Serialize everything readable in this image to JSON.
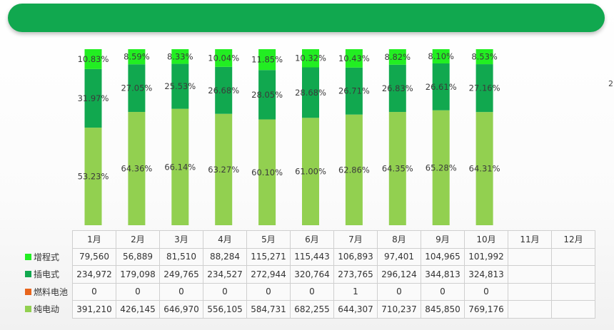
{
  "title": "",
  "edge_note": "2",
  "colors": {
    "range_extender": "#22ee22",
    "phev": "#11a84f",
    "fuel_cell": "#e8651c",
    "bev": "#92d050"
  },
  "chart_data": {
    "type": "bar",
    "stacked": true,
    "percent_stacked": true,
    "categories": [
      "1月",
      "2月",
      "3月",
      "4月",
      "5月",
      "6月",
      "7月",
      "8月",
      "9月",
      "10月",
      "11月",
      "12月"
    ],
    "series": [
      {
        "name": "纯电动",
        "color": "#92d050",
        "values": [
          53.23,
          64.36,
          66.14,
          63.27,
          60.1,
          61.0,
          62.86,
          64.35,
          65.28,
          64.31,
          null,
          null
        ],
        "labels": [
          "53.23%",
          "64.36%",
          "66.14%",
          "63.27%",
          "60.10%",
          "61.00%",
          "62.86%",
          "64.35%",
          "65.28%",
          "64.31%",
          "",
          ""
        ]
      },
      {
        "name": "插电式",
        "color": "#11a84f",
        "values": [
          31.97,
          27.05,
          25.53,
          26.68,
          28.05,
          28.68,
          26.71,
          26.83,
          26.61,
          27.16,
          null,
          null
        ],
        "labels": [
          "31.97%",
          "27.05%",
          "25.53%",
          "26.68%",
          "28.05%",
          "28.68%",
          "26.71%",
          "26.83%",
          "26.61%",
          "27.16%",
          "",
          ""
        ]
      },
      {
        "name": "增程式",
        "color": "#22ee22",
        "values": [
          10.83,
          8.59,
          8.33,
          10.04,
          11.85,
          10.32,
          10.43,
          8.82,
          8.1,
          8.53,
          null,
          null
        ],
        "labels": [
          "10.83%",
          "8.59%",
          "8.33%",
          "10.04%",
          "11.85%",
          "10.32%",
          "10.43%",
          "8.82%",
          "8.10%",
          "8.53%",
          "",
          ""
        ]
      }
    ],
    "table": {
      "headers": [
        "1月",
        "2月",
        "3月",
        "4月",
        "5月",
        "6月",
        "7月",
        "8月",
        "9月",
        "10月",
        "11月",
        "12月"
      ],
      "rows": [
        {
          "name": "增程式",
          "color": "#22ee22",
          "values": [
            "79,560",
            "56,889",
            "81,510",
            "88,284",
            "115,271",
            "115,443",
            "106,893",
            "97,401",
            "104,965",
            "101,992",
            "",
            ""
          ]
        },
        {
          "name": "插电式",
          "color": "#11a84f",
          "values": [
            "234,972",
            "179,098",
            "249,765",
            "234,527",
            "272,944",
            "320,764",
            "273,765",
            "296,124",
            "344,813",
            "324,813",
            "",
            ""
          ]
        },
        {
          "name": "燃料电池",
          "color": "#e8651c",
          "values": [
            "0",
            "0",
            "0",
            "0",
            "0",
            "0",
            "1",
            "0",
            "0",
            "0",
            "",
            ""
          ]
        },
        {
          "name": "纯电动",
          "color": "#92d050",
          "values": [
            "391,210",
            "426,145",
            "646,970",
            "556,105",
            "584,731",
            "682,255",
            "644,307",
            "710,237",
            "845,850",
            "769,176",
            "",
            ""
          ]
        }
      ]
    }
  }
}
